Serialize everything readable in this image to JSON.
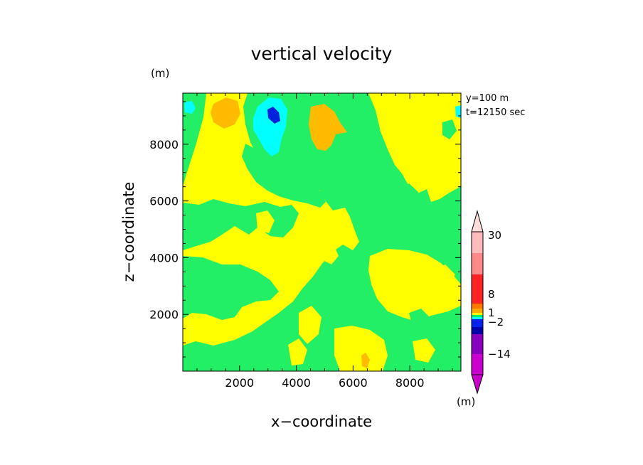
{
  "chart_data": {
    "type": "heatmap",
    "title": "vertical velocity",
    "xlabel": "x−coordinate",
    "ylabel": "z−coordinate",
    "x_unit": "(m)",
    "y_unit": "(m)",
    "annotations": [
      "y=100 m",
      "t=12150 sec"
    ],
    "xlim": [
      0,
      9800
    ],
    "ylim": [
      0,
      9800
    ],
    "x_ticks": [
      2000,
      4000,
      6000,
      8000
    ],
    "y_ticks": [
      2000,
      4000,
      6000,
      8000
    ],
    "colorbar": {
      "unit": "(m)",
      "tick_labels": [
        "30",
        "8",
        "1",
        "−2",
        "−14"
      ],
      "tick_values": [
        30,
        8,
        1,
        -2,
        -14
      ],
      "levels": [
        -30,
        -14,
        -8,
        -2,
        -1,
        -0.5,
        0,
        0.5,
        1,
        2,
        8,
        14,
        30
      ],
      "colors": [
        "#cc00cc",
        "#8800bb",
        "#0000aa",
        "#0022ee",
        "#00ffff",
        "#00ee66",
        "#ffff00",
        "#ffaa00",
        "#ff7700",
        "#ff2222",
        "#ff8888",
        "#ffbbbb",
        "#ffdddd",
        "#ffeeee"
      ]
    },
    "field": {
      "background": "#ffff00",
      "regions": [
        {
          "level": "0 to -0.5",
          "color": "#22ee66"
        },
        {
          "level": "0.5 to 1",
          "color": "#ffbb00"
        },
        {
          "level": "-1 to -2",
          "color": "#00ffff"
        },
        {
          "level": "-2 to -8",
          "color": "#0022dd"
        }
      ]
    }
  }
}
